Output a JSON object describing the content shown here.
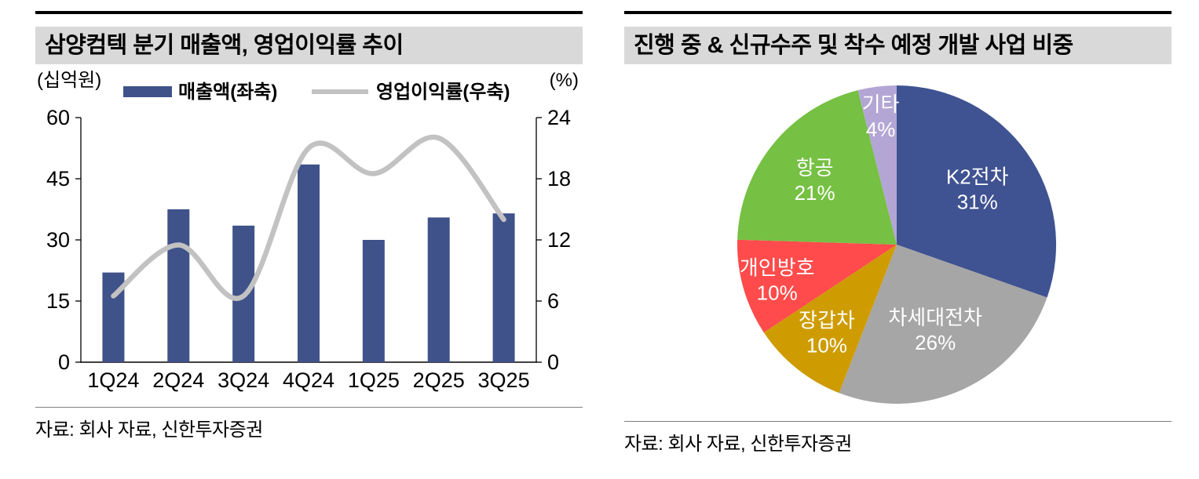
{
  "left_chart": {
    "title": "삼양컴텍 분기 매출액, 영업이익률 추이",
    "unit_left": "(십억원)",
    "unit_right": "(%)",
    "legend_bar": "매출액(좌축)",
    "legend_line": "영업이익률(우축)",
    "source": "자료: 회사 자료, 신한투자증권"
  },
  "right_chart": {
    "title": "진행 중 & 신규수주 및 착수 예정 개발 사업 비중",
    "source": "자료: 회사 자료, 신한투자증권"
  },
  "chart_data": [
    {
      "type": "bar",
      "title": "삼양컴텍 분기 매출액, 영업이익률 추이",
      "categories": [
        "1Q24",
        "2Q24",
        "3Q24",
        "4Q24",
        "1Q25",
        "2Q25",
        "3Q25"
      ],
      "series": [
        {
          "name": "매출액(좌축)",
          "type": "bar",
          "axis": "left",
          "color": "#3F5289",
          "values": [
            22,
            37.5,
            33.5,
            48.5,
            30,
            35.5,
            36.5
          ]
        },
        {
          "name": "영업이익률(우축)",
          "type": "line",
          "axis": "right",
          "color": "#C2C2C2",
          "values": [
            6.5,
            11.5,
            6.5,
            21,
            18.5,
            22,
            14
          ]
        }
      ],
      "ylabel_left": "(십억원)",
      "ylabel_right": "(%)",
      "ylim_left": [
        0,
        60
      ],
      "yticks_left": [
        0,
        15,
        30,
        45,
        60
      ],
      "ylim_right": [
        0,
        24
      ],
      "yticks_right": [
        0,
        6,
        12,
        18,
        24
      ],
      "grid": false,
      "legend_position": "top"
    },
    {
      "type": "pie",
      "title": "진행 중 & 신규수주 및 착수 예정 개발 사업 비중",
      "labels": [
        "K2전차",
        "차세대전차",
        "장갑차",
        "개인방호",
        "항공",
        "기타"
      ],
      "values": [
        31,
        26,
        10,
        10,
        21,
        4
      ],
      "value_labels": [
        "31%",
        "26%",
        "10%",
        "10%",
        "21%",
        "4%"
      ],
      "colors": [
        "#3F5291",
        "#A6A6A6",
        "#CE9C00",
        "#FF4B4B",
        "#76C043",
        "#B3A6D5"
      ],
      "start_angle_deg": -90,
      "direction": "clockwise"
    }
  ]
}
